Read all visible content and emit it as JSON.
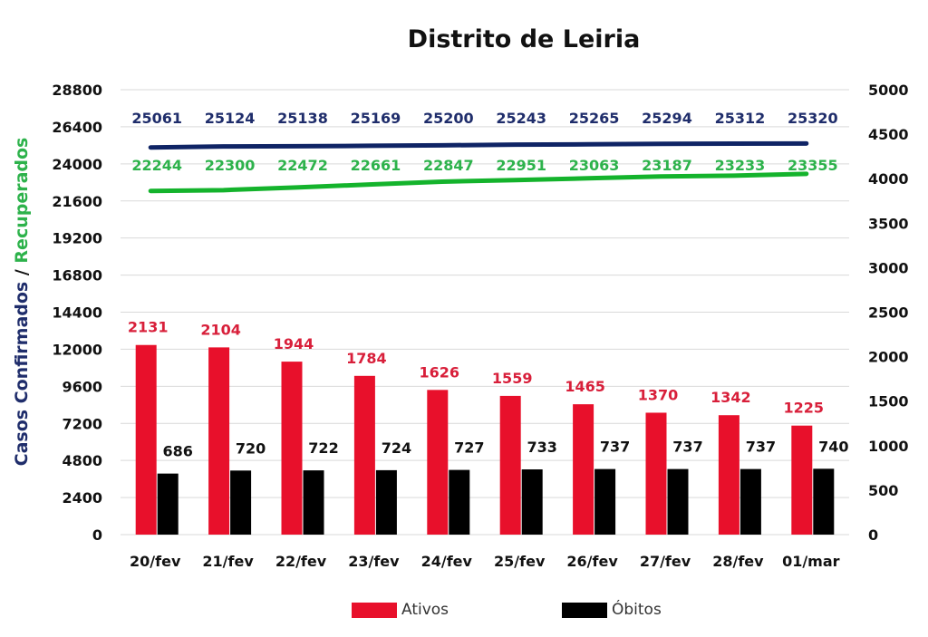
{
  "chart_data": {
    "type": "bar",
    "title": "Distrito de Leiria",
    "ylabel_parts": [
      "Casos Confirmados",
      " / ",
      "Recuperados"
    ],
    "categories": [
      "20/fev",
      "21/fev",
      "22/fev",
      "23/fev",
      "24/fev",
      "25/fev",
      "26/fev",
      "27/fev",
      "28/fev",
      "01/mar"
    ],
    "left_axis": {
      "ylim": [
        0,
        28800
      ],
      "ticks": [
        0,
        2400,
        4800,
        7200,
        9600,
        12000,
        14400,
        16800,
        19200,
        21600,
        24000,
        26400,
        28800
      ]
    },
    "right_axis": {
      "ylim": [
        0,
        5000
      ],
      "ticks": [
        0,
        500,
        1000,
        1500,
        2000,
        2500,
        3000,
        3500,
        4000,
        4500,
        5000
      ]
    },
    "series": [
      {
        "name": "Ativos",
        "kind": "bar",
        "axis": "right",
        "color": "#e8102b",
        "label_color": "#d81f3a",
        "values": [
          2131,
          2104,
          1944,
          1784,
          1626,
          1559,
          1465,
          1370,
          1342,
          1225
        ]
      },
      {
        "name": "Óbitos",
        "kind": "bar",
        "axis": "right",
        "color": "#000000",
        "label_color": "#111111",
        "values": [
          686,
          720,
          722,
          724,
          727,
          733,
          737,
          737,
          737,
          740
        ]
      },
      {
        "kind": "line",
        "axis": "left",
        "color": "#0f2465",
        "label_color": "#1f2d6b",
        "values": [
          25061,
          25124,
          25138,
          25169,
          25200,
          25243,
          25265,
          25294,
          25312,
          25320
        ]
      },
      {
        "kind": "line",
        "axis": "left",
        "color": "#14b32c",
        "label_color": "#2db24b",
        "values": [
          22244,
          22300,
          22472,
          22661,
          22847,
          22951,
          23063,
          23187,
          23233,
          23355
        ]
      }
    ],
    "grid": true,
    "legend": {
      "position": "bottom",
      "items": [
        "Ativos",
        "Óbitos"
      ]
    }
  }
}
